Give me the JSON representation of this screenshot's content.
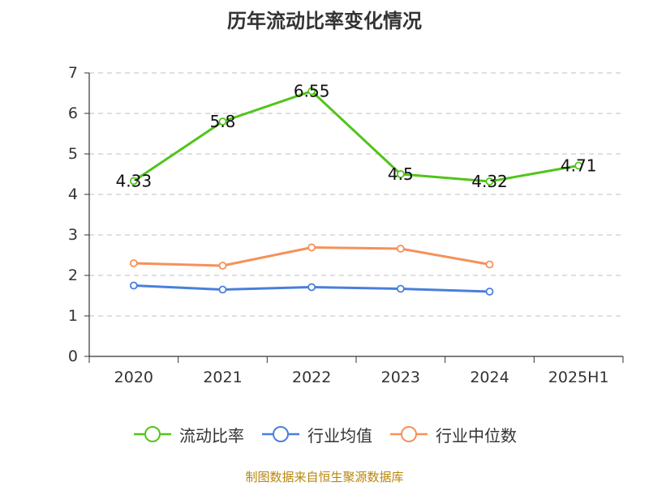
{
  "chart_data": {
    "type": "line",
    "title": "历年流动比率变化情况",
    "categories": [
      "2020",
      "2021",
      "2022",
      "2023",
      "2024",
      "2025H1"
    ],
    "ylim": [
      0,
      7
    ],
    "yticks": [
      0,
      1,
      2,
      3,
      4,
      5,
      6,
      7
    ],
    "grid": true,
    "legend_position": "bottom",
    "series": [
      {
        "name": "流动比率",
        "color": "#52c41a",
        "values": [
          4.33,
          5.8,
          6.55,
          4.5,
          4.32,
          4.71
        ],
        "data_labels": [
          "4.33",
          "5.8",
          "6.55",
          "4.5",
          "4.32",
          "4.71"
        ]
      },
      {
        "name": "行业均值",
        "color": "#4a7fdb",
        "values": [
          1.75,
          1.65,
          1.71,
          1.67,
          1.6,
          null
        ]
      },
      {
        "name": "行业中位数",
        "color": "#f5915a",
        "values": [
          2.3,
          2.24,
          2.69,
          2.66,
          2.27,
          null
        ]
      }
    ]
  },
  "source_text": "制图数据来自恒生聚源数据库"
}
